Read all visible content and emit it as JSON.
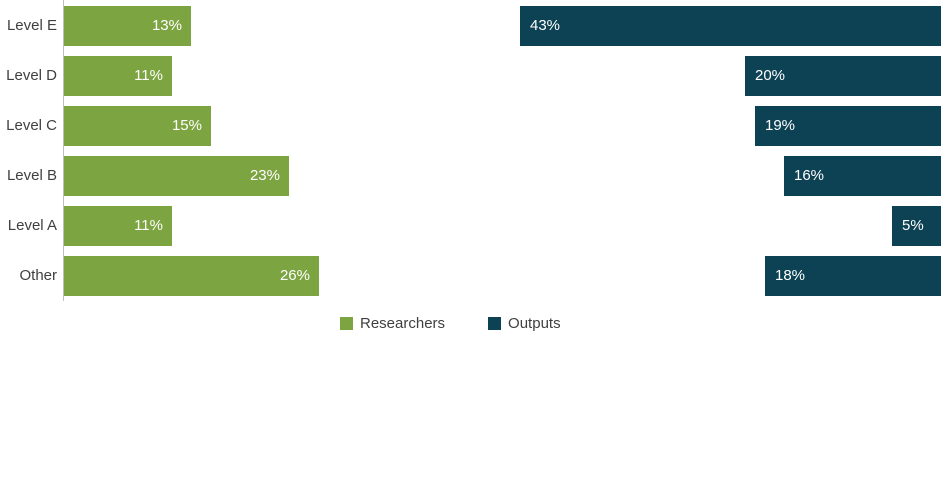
{
  "chart_data": {
    "type": "bar",
    "orientation": "horizontal-diverging",
    "title": "",
    "xlabel": "",
    "ylabel": "",
    "categories": [
      "Level E",
      "Level D",
      "Level C",
      "Level B",
      "Level A",
      "Other"
    ],
    "series": [
      {
        "name": "Researchers",
        "side": "left",
        "color": "#7CA441",
        "values": [
          13,
          11,
          15,
          23,
          11,
          26
        ],
        "labels": [
          "13%",
          "11%",
          "15%",
          "23%",
          "11%",
          "26%"
        ]
      },
      {
        "name": "Outputs",
        "side": "right",
        "color": "#0C4254",
        "values": [
          43,
          20,
          19,
          16,
          5,
          18
        ],
        "labels": [
          "43%",
          "20%",
          "19%",
          "16%",
          "5%",
          "18%"
        ]
      }
    ],
    "xlim": [
      0,
      45
    ],
    "grid": false,
    "legend_position": "bottom-center"
  },
  "legend": {
    "items": [
      {
        "label": "Researchers",
        "color": "#7CA441"
      },
      {
        "label": "Outputs",
        "color": "#0C4254"
      }
    ]
  },
  "colors": {
    "researchers_bar": "#7CA441",
    "outputs_bar": "#0C4254",
    "axis_line": "#BFBFBF",
    "category_text": "#404040",
    "value_text": "#FFFFFF",
    "background": "#FFFFFF"
  }
}
